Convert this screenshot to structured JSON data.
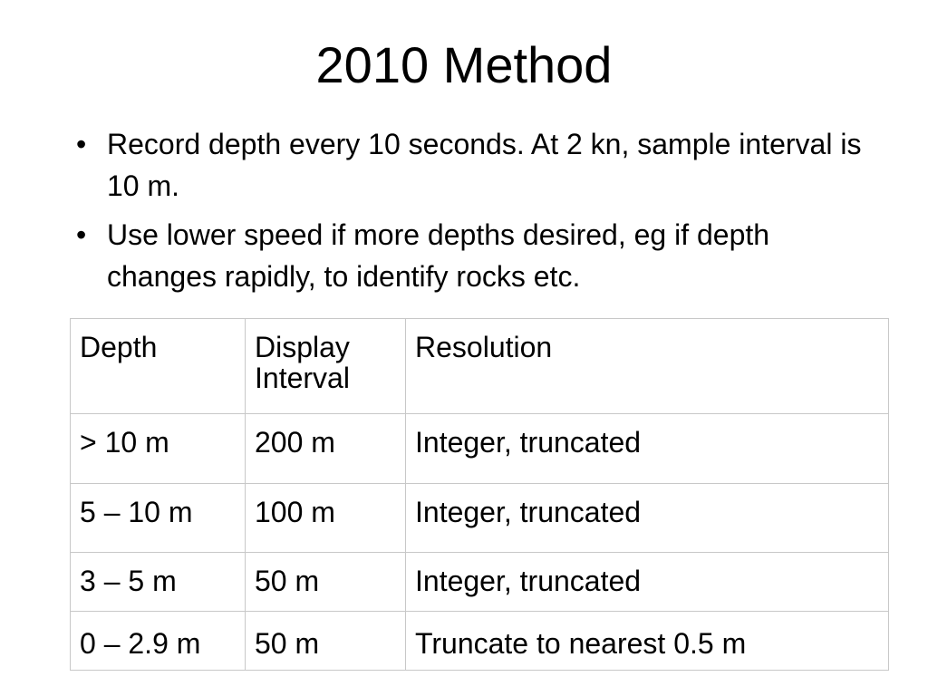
{
  "slide": {
    "title": "2010 Method",
    "bullets": [
      {
        "marker": "•",
        "text": "Record depth every 10 seconds. At 2 kn, sample interval is 10 m."
      },
      {
        "marker": "•",
        "text": "Use lower speed if more depths desired, eg if depth changes rapidly, to identify rocks etc."
      }
    ]
  },
  "table": {
    "headers": [
      "Depth",
      "Display Interval",
      "Resolution"
    ],
    "rows": [
      [
        "> 10 m",
        "200 m",
        "Integer, truncated"
      ],
      [
        "5 – 10 m",
        "100 m",
        "Integer, truncated"
      ],
      [
        "3 – 5 m",
        "50 m",
        "Integer, truncated"
      ],
      [
        "0 – 2.9 m",
        "50 m",
        "Truncate to nearest 0.5 m"
      ]
    ]
  },
  "colors": {
    "text": "#000000",
    "background": "#ffffff",
    "table_border": "#c8c8c8"
  }
}
